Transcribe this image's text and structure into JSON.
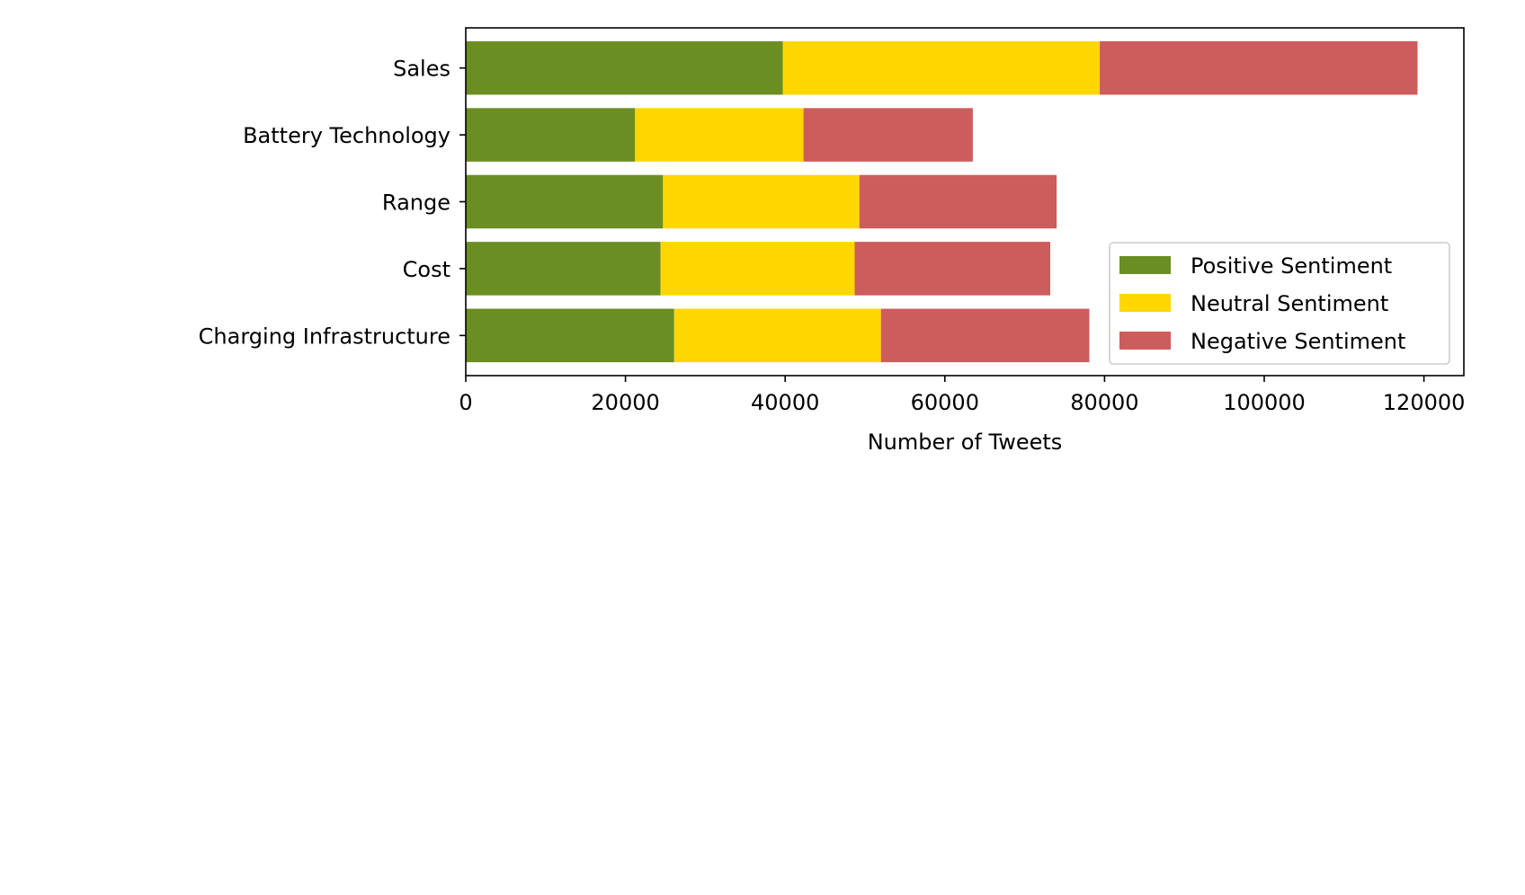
{
  "chart_data": {
    "type": "bar",
    "orientation": "horizontal",
    "stacked": true,
    "categories": [
      "Sales",
      "Battery Technology",
      "Range",
      "Cost",
      "Charging Infrastructure"
    ],
    "series": [
      {
        "name": "Positive Sentiment",
        "color": "#6b8e23",
        "values": [
          39700,
          21200,
          24700,
          24400,
          26100
        ]
      },
      {
        "name": "Neutral Sentiment",
        "color": "#ffd700",
        "values": [
          39700,
          21100,
          24600,
          24300,
          25900
        ]
      },
      {
        "name": "Negative Sentiment",
        "color": "#cd5c5c",
        "values": [
          39800,
          21200,
          24700,
          24500,
          26100
        ]
      }
    ],
    "xlabel": "Number of Tweets",
    "ylabel": "",
    "title": "",
    "xlim": [
      0,
      125000
    ],
    "xticks": [
      0,
      20000,
      40000,
      60000,
      80000,
      100000,
      120000
    ],
    "xtick_labels": [
      "0",
      "20000",
      "40000",
      "60000",
      "80000",
      "100000",
      "120000"
    ],
    "grid": false,
    "legend_position": "lower-right"
  }
}
